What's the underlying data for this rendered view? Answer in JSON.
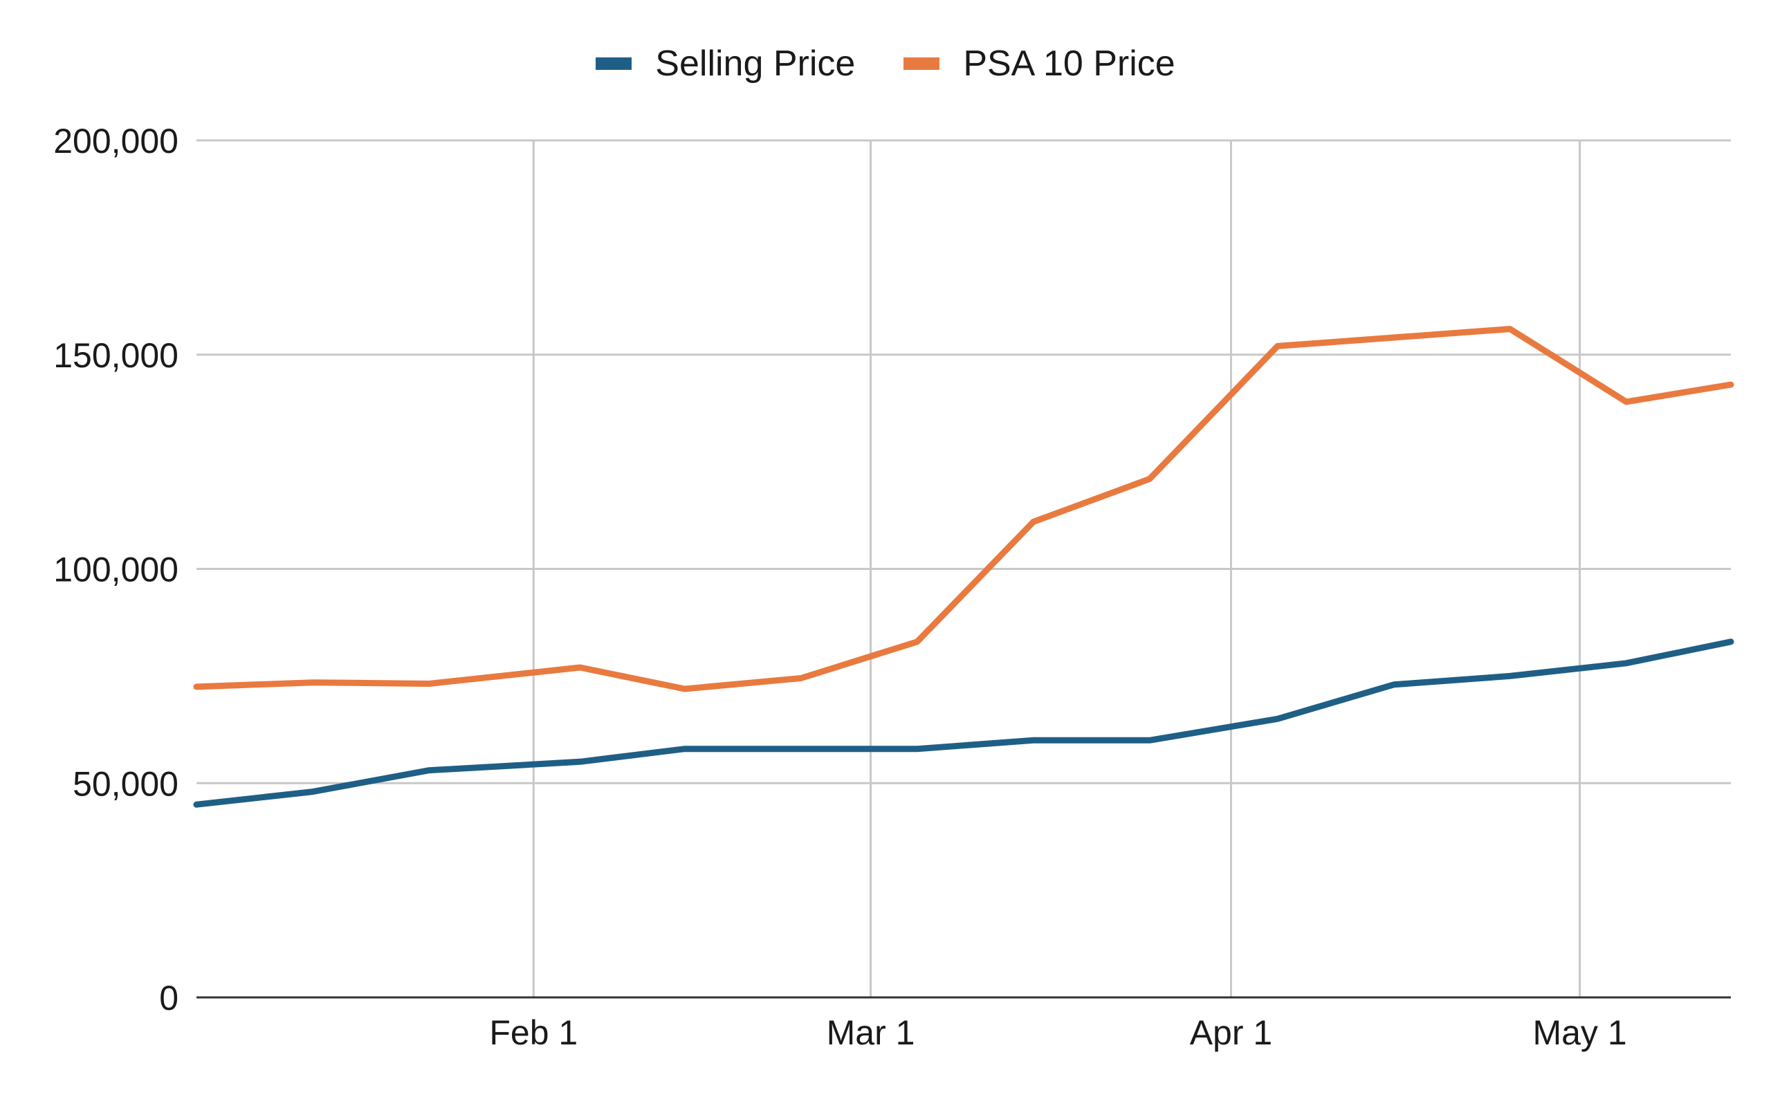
{
  "chart_data": {
    "type": "line",
    "title": "",
    "xlabel": "",
    "ylabel": "",
    "legend_position": "top-center",
    "grid": true,
    "ylim": [
      0,
      200000
    ],
    "y_ticks": [
      0,
      50000,
      100000,
      150000,
      200000
    ],
    "y_tick_labels": [
      "0",
      "50,000",
      "100,000",
      "150,000",
      "200,000"
    ],
    "xlim": [
      "2024-01-03",
      "2024-05-14"
    ],
    "x_ticks": [
      "2024-02-01",
      "2024-03-01",
      "2024-04-01",
      "2024-05-01"
    ],
    "x_tick_labels": [
      "Feb 1",
      "Mar 1",
      "Apr 1",
      "May 1"
    ],
    "x": [
      "2024-01-03",
      "2024-01-13",
      "2024-01-23",
      "2024-02-05",
      "2024-02-14",
      "2024-02-24",
      "2024-03-05",
      "2024-03-15",
      "2024-03-25",
      "2024-04-05",
      "2024-04-15",
      "2024-04-25",
      "2024-05-05",
      "2024-05-14"
    ],
    "series": [
      {
        "name": "Selling Price",
        "color": "#1f5f86",
        "values": [
          45000,
          48000,
          53000,
          55000,
          58000,
          58000,
          58000,
          60000,
          60000,
          65000,
          73000,
          75000,
          78000,
          83000
        ]
      },
      {
        "name": "PSA 10 Price",
        "color": "#e97a3f",
        "values": [
          72500,
          73500,
          73200,
          77000,
          72000,
          74500,
          83000,
          111000,
          121000,
          152000,
          154000,
          156000,
          139000,
          143000
        ]
      }
    ]
  }
}
